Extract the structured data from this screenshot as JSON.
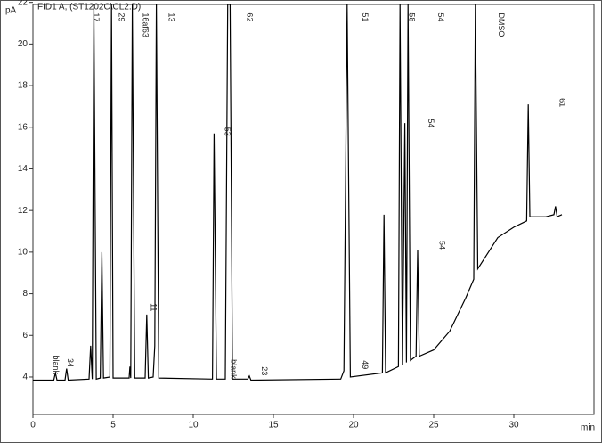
{
  "chart_data": {
    "type": "line",
    "title": "FID1 A, (ST1202C\\CL2.D)",
    "y_label": "pA",
    "x_label": "min",
    "x": [
      0,
      1.3,
      1.4,
      1.5,
      2.0,
      2.1,
      2.2,
      3.5,
      3.6,
      3.7,
      3.8,
      3.95,
      4.2,
      4.3,
      4.4,
      4.8,
      4.9,
      5.0,
      6.0,
      6.05,
      6.1,
      6.2,
      6.35,
      7.0,
      7.1,
      7.2,
      7.5,
      7.6,
      7.7,
      7.85,
      11.2,
      11.3,
      11.45,
      12.0,
      12.15,
      12.3,
      12.45,
      13.4,
      13.5,
      13.6,
      19.2,
      19.4,
      19.6,
      19.8,
      21.8,
      21.9,
      22.0,
      22.8,
      22.9,
      23.05,
      23.2,
      23.3,
      23.4,
      23.55,
      23.9,
      24.0,
      24.1,
      25.0,
      26.0,
      26.5,
      27.0,
      27.5,
      27.6,
      27.75,
      28.5,
      29.0,
      30.0,
      30.8,
      30.9,
      31.0,
      32.0,
      32.5,
      32.6,
      32.7,
      33.0
    ],
    "series": [
      {
        "color": "#000000",
        "values": [
          3.85,
          3.85,
          4.2,
          3.85,
          3.85,
          4.4,
          3.85,
          3.9,
          5.5,
          3.9,
          21.9,
          3.9,
          3.95,
          10.0,
          3.95,
          4.0,
          21.9,
          3.95,
          3.95,
          4.5,
          3.95,
          21.9,
          3.95,
          3.95,
          7.0,
          3.95,
          4.0,
          5.5,
          21.9,
          3.95,
          3.9,
          15.7,
          3.9,
          3.9,
          21.9,
          21.9,
          3.9,
          3.9,
          4.05,
          3.85,
          3.9,
          4.3,
          21.9,
          4.0,
          4.2,
          11.8,
          4.2,
          4.5,
          21.9,
          4.6,
          16.2,
          4.7,
          21.9,
          4.8,
          5.0,
          10.1,
          5.0,
          5.3,
          6.2,
          7.0,
          7.8,
          8.7,
          21.9,
          9.2,
          10.1,
          10.7,
          11.2,
          11.5,
          17.1,
          11.7,
          11.7,
          11.8,
          12.2,
          11.7,
          11.8
        ]
      }
    ],
    "xlim": [
      0,
      35
    ],
    "xticks": [
      0,
      5,
      10,
      15,
      20,
      25,
      30
    ],
    "ylim": [
      2.2,
      21.9
    ],
    "yticks": [
      4,
      6,
      8,
      10,
      12,
      14,
      16,
      18,
      20,
      22
    ],
    "peak_labels": [
      {
        "text": "blank",
        "x": 1.4,
        "y": 5.05
      },
      {
        "text": "34",
        "x": 2.3,
        "y": 4.9
      },
      {
        "text": "17",
        "x": 3.9,
        "y": 21.5
      },
      {
        "text": "29",
        "x": 5.5,
        "y": 21.5
      },
      {
        "text": "16af63",
        "x": 7.0,
        "y": 21.5
      },
      {
        "text": "13",
        "x": 8.6,
        "y": 21.5
      },
      {
        "text": "11",
        "x": 7.5,
        "y": 7.55
      },
      {
        "text": "62",
        "x": 13.5,
        "y": 21.5
      },
      {
        "text": "53",
        "x": 12.1,
        "y": 16.0
      },
      {
        "text": "blank",
        "x": 12.5,
        "y": 4.85
      },
      {
        "text": "23",
        "x": 14.4,
        "y": 4.5
      },
      {
        "text": "51",
        "x": 20.7,
        "y": 21.5
      },
      {
        "text": "49",
        "x": 20.7,
        "y": 4.8
      },
      {
        "text": "58",
        "x": 23.6,
        "y": 21.5
      },
      {
        "text": "54",
        "x": 25.4,
        "y": 21.5
      },
      {
        "text": "54",
        "x": 24.8,
        "y": 16.4
      },
      {
        "text": "54",
        "x": 25.5,
        "y": 10.55
      },
      {
        "text": "DMSO",
        "x": 29.2,
        "y": 21.5
      },
      {
        "text": "61",
        "x": 33.0,
        "y": 17.4
      }
    ]
  }
}
